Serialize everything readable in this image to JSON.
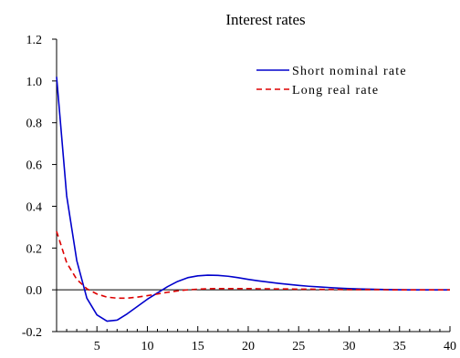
{
  "colors": {
    "short_nominal_rate": "#0000cc",
    "long_real_rate": "#dd0000",
    "axes": "#000000",
    "background": "#ffffff"
  },
  "chart_data": {
    "type": "line",
    "title": "Interest rates",
    "xlabel": "",
    "ylabel": "",
    "xlim": [
      1,
      40
    ],
    "ylim": [
      -0.2,
      1.2
    ],
    "xticks": [
      5,
      10,
      15,
      20,
      25,
      30,
      35,
      40
    ],
    "xtick_labels": [
      "5",
      "10",
      "15",
      "20",
      "25",
      "30",
      "35",
      "40"
    ],
    "yticks": [
      -0.2,
      0.0,
      0.2,
      0.4,
      0.6,
      0.8,
      1.0,
      1.2
    ],
    "ytick_labels": [
      "-0.2",
      "0.0",
      "0.2",
      "0.4",
      "0.6",
      "0.8",
      "1.0",
      "1.2"
    ],
    "zero_line": true,
    "grid": false,
    "legend_position": "top-right",
    "x": [
      1,
      2,
      3,
      4,
      5,
      6,
      7,
      8,
      9,
      10,
      11,
      12,
      13,
      14,
      15,
      16,
      17,
      18,
      19,
      20,
      21,
      22,
      23,
      24,
      25,
      26,
      27,
      28,
      29,
      30,
      31,
      32,
      33,
      34,
      35,
      36,
      37,
      38,
      39,
      40
    ],
    "series": [
      {
        "name": "Short nominal rate",
        "style": "solid",
        "color": "#0000cc",
        "values": [
          1.02,
          0.45,
          0.14,
          -0.04,
          -0.12,
          -0.15,
          -0.145,
          -0.115,
          -0.08,
          -0.045,
          -0.015,
          0.015,
          0.04,
          0.058,
          0.067,
          0.07,
          0.069,
          0.065,
          0.058,
          0.05,
          0.043,
          0.037,
          0.031,
          0.026,
          0.021,
          0.017,
          0.014,
          0.011,
          0.008,
          0.006,
          0.004,
          0.003,
          0.002,
          0.001,
          0.0005,
          0.0,
          0.0,
          0.0,
          0.0,
          0.0
        ]
      },
      {
        "name": "Long real rate",
        "style": "dashed",
        "color": "#dd0000",
        "values": [
          0.28,
          0.13,
          0.05,
          0.005,
          -0.02,
          -0.035,
          -0.04,
          -0.04,
          -0.035,
          -0.028,
          -0.02,
          -0.012,
          -0.005,
          0.0,
          0.003,
          0.005,
          0.006,
          0.006,
          0.006,
          0.006,
          0.005,
          0.005,
          0.004,
          0.004,
          0.003,
          0.003,
          0.002,
          0.002,
          0.002,
          0.001,
          0.001,
          0.001,
          0.001,
          0.0,
          0.0,
          0.0,
          0.0,
          0.0,
          0.0,
          0.0
        ]
      }
    ]
  }
}
